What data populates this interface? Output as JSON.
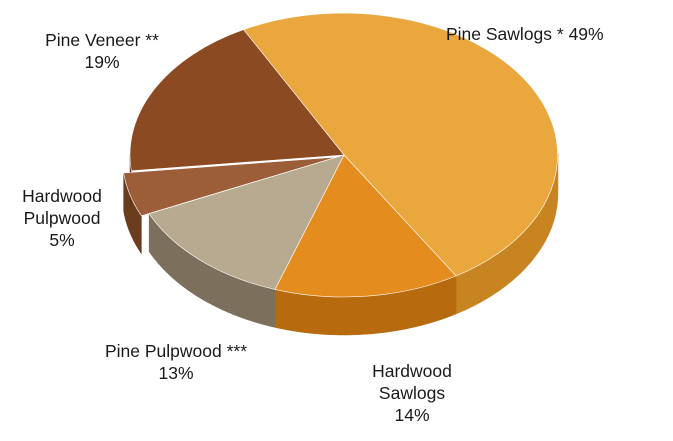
{
  "chart_data": {
    "type": "pie",
    "style": "3d-exploded-tilted",
    "slices": [
      {
        "name": "Pine Sawlogs *",
        "value": 49,
        "label_lines": [
          "Pine Sawlogs * 49%"
        ],
        "color": "#E9A73D",
        "side": "#C88420"
      },
      {
        "name": "Hardwood Sawlogs",
        "value": 14,
        "label_lines": [
          "Hardwood",
          "Sawlogs",
          "14%"
        ],
        "color": "#E58C1E",
        "side": "#B86A0F"
      },
      {
        "name": "Pine Pulpwood ***",
        "value": 13,
        "label_lines": [
          "Pine Pulpwood ***",
          "13%"
        ],
        "color": "#B8AA90",
        "side": "#7C705C"
      },
      {
        "name": "Hardwood Pulpwood",
        "value": 5,
        "label_lines": [
          "Hardwood",
          "Pulpwood",
          "5%"
        ],
        "color": "#9C5E38",
        "side": "#6C3C1E"
      },
      {
        "name": "Pine Veneer **",
        "value": 19,
        "label_lines": [
          "Pine Veneer **",
          "19%"
        ],
        "color": "#8B4A21",
        "side": "#5C2E10"
      }
    ]
  }
}
